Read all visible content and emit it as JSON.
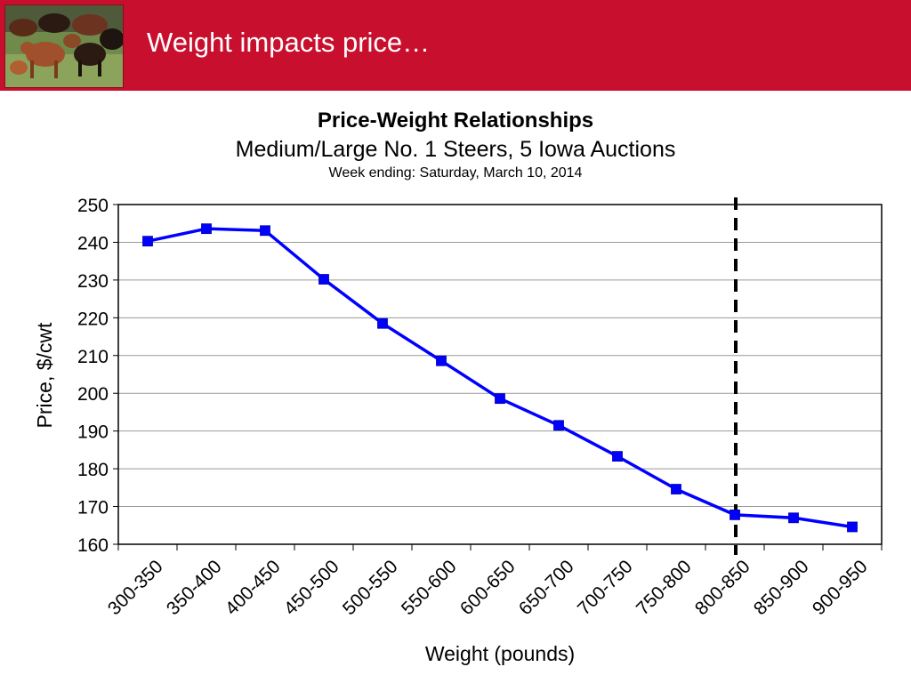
{
  "slide": {
    "title": "Weight impacts price…",
    "accent_color": "#c8102e",
    "photo": "cattle-herd-photo"
  },
  "chart_data": {
    "type": "line",
    "title": "Price-Weight Relationships",
    "subtitle": "Medium/Large No. 1 Steers, 5 Iowa Auctions",
    "subtitle2": "Week ending: Saturday, March 10, 2014",
    "xlabel": "Weight (pounds)",
    "ylabel": "Price, $/cwt",
    "categories": [
      "300-350",
      "350-400",
      "400-450",
      "450-500",
      "500-550",
      "550-600",
      "600-650",
      "650-700",
      "700-750",
      "750-800",
      "800-850",
      "850-900",
      "900-950"
    ],
    "series": [
      {
        "values": [
          240.3,
          243.6,
          243.1,
          230.2,
          218.5,
          208.6,
          198.6,
          191.5,
          183.3,
          174.6,
          167.8,
          167.0,
          164.6
        ],
        "color": "#0000ff",
        "marker": "square"
      }
    ],
    "ylim": [
      160,
      250
    ],
    "yticks": [
      "160",
      "170",
      "180",
      "190",
      "200",
      "210",
      "220",
      "230",
      "240",
      "250"
    ],
    "grid": true,
    "legend": "none",
    "reference_line": {
      "after_category": "800-850",
      "style": "dashed",
      "color": "#000000"
    }
  }
}
